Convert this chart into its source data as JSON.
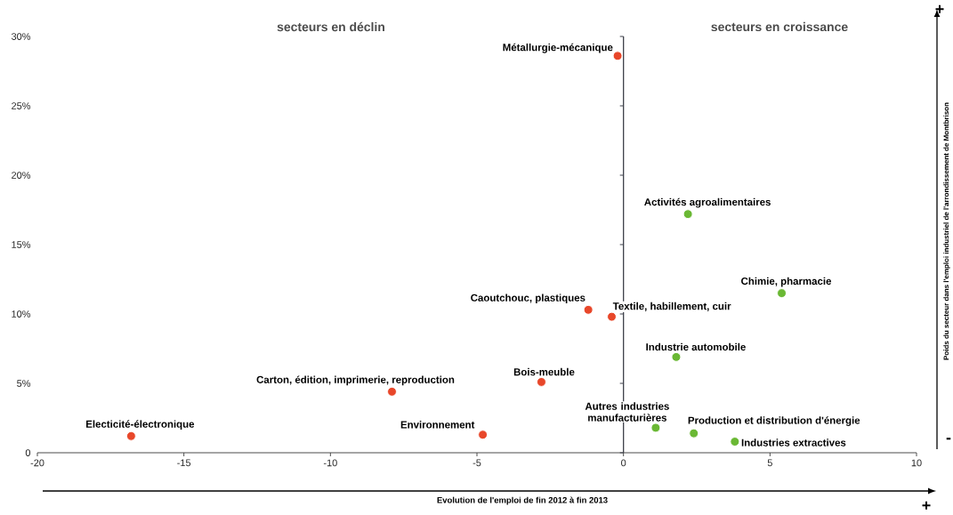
{
  "chart_data": {
    "type": "scatter",
    "xlabel": "Evolution de l'emploi de fin 2012 à fin 2013",
    "ylabel": "Poids du secteur dans l'emploi industriel de l'arrondissement de Montbrison",
    "x": [
      -0.2,
      2.2,
      5.4,
      -1.2,
      -0.4,
      1.8,
      -2.8,
      -7.9,
      -16.8,
      -4.8,
      1.1,
      2.4,
      3.8
    ],
    "values": [
      28.6,
      17.2,
      11.5,
      10.3,
      9.8,
      6.9,
      5.1,
      4.4,
      1.2,
      1.3,
      1.8,
      1.4,
      0.8
    ],
    "colors": [
      "#e8472a",
      "#6ab834",
      "#6ab834",
      "#e8472a",
      "#e8472a",
      "#6ab834",
      "#e8472a",
      "#e8472a",
      "#e8472a",
      "#e8472a",
      "#6ab834",
      "#6ab834",
      "#6ab834"
    ],
    "xlim": [
      -20,
      10
    ],
    "xticks": [
      -20,
      -15,
      -10,
      -5,
      0,
      5,
      10
    ],
    "ylim": [
      0,
      30
    ],
    "yticks": [
      0,
      {
        "value": 5,
        "label": "5%"
      },
      {
        "value": 10,
        "label": "10%"
      },
      {
        "value": 15,
        "label": "15%"
      },
      {
        "value": 20,
        "label": "20%"
      },
      {
        "value": 25,
        "label": "25%"
      },
      {
        "value": 30,
        "label": "30%"
      }
    ],
    "ref_lines": [
      {
        "axis": "x",
        "value": 0,
        "color": "#3c3f48"
      }
    ],
    "annotations": [
      {
        "text": "Métallurgie-mécanique",
        "x": -0.2,
        "y": 28.6
      },
      {
        "text": "Activités agroalimentaires",
        "x": 2.2,
        "y": 17.2
      },
      {
        "text": "Chimie, pharmacie",
        "x": 5.4,
        "y": 11.5
      },
      {
        "text": "Caoutchouc, plastiques",
        "x": -1.2,
        "y": 10.3
      },
      {
        "text": "Textile, habillement, cuir",
        "x": -0.4,
        "y": 9.8
      },
      {
        "text": "Industrie automobile",
        "x": 1.8,
        "y": 6.9
      },
      {
        "text": "Bois-meuble",
        "x": -2.8,
        "y": 5.1
      },
      {
        "text": "Carton, édition, imprimerie, reproduction",
        "x": -7.9,
        "y": 4.4
      },
      {
        "text": "Electicité-électronique",
        "x": -16.8,
        "y": 1.2
      },
      {
        "text": "Environnement",
        "x": -4.8,
        "y": 1.3
      },
      {
        "text": "Autres industries manufacturières",
        "x": 1.1,
        "y": 1.8
      },
      {
        "text": "Production et distribution d'énergie",
        "x": 2.4,
        "y": 1.4
      },
      {
        "text": "Industries extractives",
        "x": 3.8,
        "y": 0.8
      },
      "secteurs  en déclin",
      "secteurs  en croissance",
      "+",
      "+",
      "-"
    ]
  }
}
